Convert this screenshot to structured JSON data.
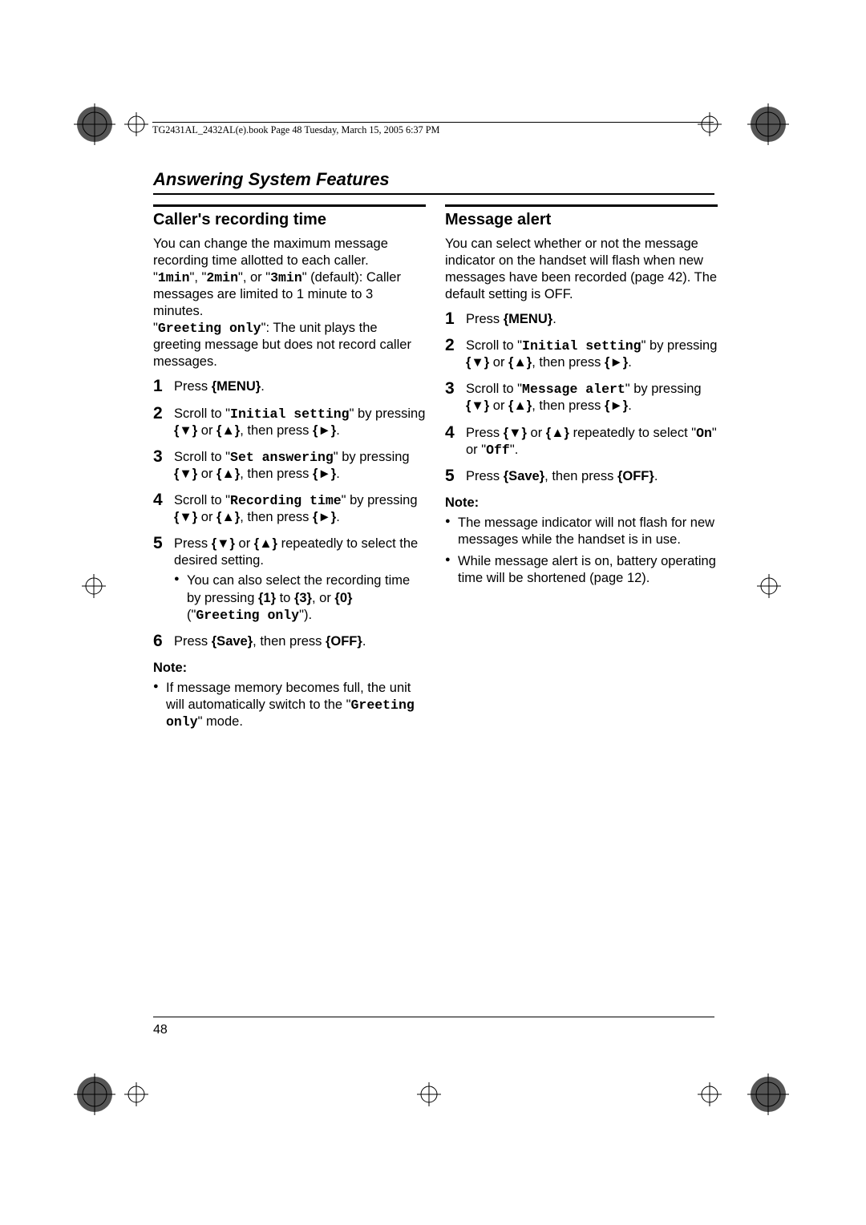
{
  "header": {
    "book_line": "TG2431AL_2432AL(e).book  Page 48  Tuesday, March 15, 2005  6:37 PM"
  },
  "section_title": "Answering System Features",
  "page_number": "48",
  "left": {
    "heading": "Caller's recording time",
    "intro_1": "You can change the maximum message recording time allotted to each caller.",
    "intro_2a": "\"",
    "intro_2_m1": "1min",
    "intro_2b": "\", \"",
    "intro_2_m2": "2min",
    "intro_2c": "\", or \"",
    "intro_2_m3": "3min",
    "intro_2d": "\" (default): Caller messages are limited to 1 minute to 3 minutes.",
    "intro_3a": "\"",
    "intro_3_m": "Greeting only",
    "intro_3b": "\": The unit plays the greeting message but does not record caller messages.",
    "steps": {
      "s1": "Press {MENU}.",
      "s2a": "Scroll to \"",
      "s2_m": "Initial setting",
      "s2b": "\" by pressing {▼} or {▲}, then press {►}.",
      "s3a": "Scroll to \"",
      "s3_m": "Set answering",
      "s3b": "\" by pressing {▼} or {▲}, then press {►}.",
      "s4a": "Scroll to \"",
      "s4_m": "Recording time",
      "s4b": "\" by pressing {▼} or {▲}, then press {►}.",
      "s5": "Press {▼} or {▲} repeatedly to select the desired setting.",
      "s5_sub_a": "You can also select the recording time by pressing {1} to {3}, or {0} (\"",
      "s5_sub_m": "Greeting only",
      "s5_sub_b": "\").",
      "s6": "Press {Save}, then press {OFF}."
    },
    "note_label": "Note:",
    "note_1a": "If message memory becomes full, the unit will automatically switch to the \"",
    "note_1_m": "Greeting only",
    "note_1b": "\" mode."
  },
  "right": {
    "heading": "Message alert",
    "intro": "You can select whether or not the message indicator on the handset will flash when new messages have been recorded (page 42). The default setting is OFF.",
    "steps": {
      "s1": "Press {MENU}.",
      "s2a": "Scroll to \"",
      "s2_m": "Initial setting",
      "s2b": "\" by pressing {▼} or {▲}, then press {►}.",
      "s3a": "Scroll to \"",
      "s3_m": "Message alert",
      "s3b": "\" by pressing {▼} or {▲}, then press {►}.",
      "s4a": "Press {▼} or {▲} repeatedly to select \"",
      "s4_m1": "On",
      "s4b": "\" or \"",
      "s4_m2": "Off",
      "s4c": "\".",
      "s5": "Press {Save}, then press {OFF}."
    },
    "note_label": "Note:",
    "note_1": "The message indicator will not flash for new messages while the handset is in use.",
    "note_2": "While message alert is on, battery operating time will be shortened (page 12)."
  }
}
